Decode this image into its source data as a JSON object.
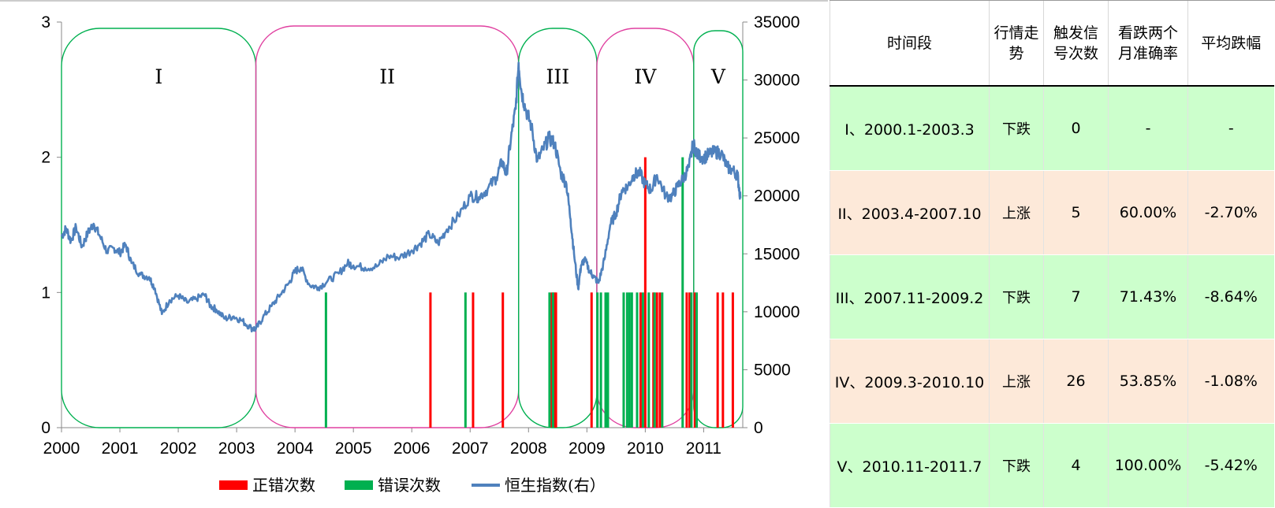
{
  "chart_data": {
    "type": "line+bar",
    "x_ticks": [
      "2000",
      "2001",
      "2002",
      "2003",
      "2004",
      "2005",
      "2006",
      "2007",
      "2008",
      "2009",
      "2010",
      "2011"
    ],
    "x_range": [
      2000,
      2011.67
    ],
    "y_left": {
      "ticks": [
        "0",
        "1",
        "2",
        "3"
      ],
      "range": [
        0,
        3
      ]
    },
    "y_right": {
      "ticks": [
        "0",
        "5000",
        "10000",
        "15000",
        "20000",
        "25000",
        "30000",
        "35000"
      ],
      "range": [
        0,
        35000
      ]
    },
    "series": [
      {
        "name": "正错次数",
        "type": "bar",
        "axis": "left",
        "color": "#ff0000",
        "points": [
          [
            2006.32,
            1
          ],
          [
            2007.05,
            1
          ],
          [
            2007.56,
            1
          ],
          [
            2008.4,
            1
          ],
          [
            2008.44,
            1
          ],
          [
            2008.47,
            1
          ],
          [
            2009.08,
            1
          ],
          [
            2009.92,
            1
          ],
          [
            2010.0,
            2
          ],
          [
            2010.14,
            1
          ],
          [
            2010.2,
            1
          ],
          [
            2010.25,
            1
          ],
          [
            2010.71,
            1
          ],
          [
            2010.76,
            1
          ],
          [
            2010.85,
            1
          ],
          [
            2011.24,
            1
          ],
          [
            2011.33,
            1
          ],
          [
            2011.5,
            1
          ]
        ]
      },
      {
        "name": "错误次数",
        "type": "bar",
        "axis": "left",
        "color": "#00b050",
        "points": [
          [
            2004.53,
            1
          ],
          [
            2006.92,
            1
          ],
          [
            2008.36,
            1
          ],
          [
            2008.42,
            1
          ],
          [
            2009.18,
            1
          ],
          [
            2009.24,
            1
          ],
          [
            2009.32,
            1
          ],
          [
            2009.36,
            1
          ],
          [
            2009.63,
            1
          ],
          [
            2009.69,
            1
          ],
          [
            2009.73,
            1
          ],
          [
            2009.77,
            1
          ],
          [
            2009.86,
            1
          ],
          [
            2009.96,
            1
          ],
          [
            2010.06,
            1
          ],
          [
            2010.16,
            1
          ],
          [
            2010.29,
            1
          ],
          [
            2010.64,
            2
          ],
          [
            2010.79,
            1
          ],
          [
            2010.88,
            1
          ]
        ]
      },
      {
        "name": "恒生指数(右)",
        "type": "line",
        "axis": "right",
        "color": "#4f81bd",
        "points": [
          [
            2000.0,
            16500
          ],
          [
            2000.08,
            17200
          ],
          [
            2000.16,
            16100
          ],
          [
            2000.25,
            17300
          ],
          [
            2000.35,
            15600
          ],
          [
            2000.45,
            16800
          ],
          [
            2000.55,
            17600
          ],
          [
            2000.65,
            16600
          ],
          [
            2000.78,
            15200
          ],
          [
            2000.9,
            15500
          ],
          [
            2001.0,
            15100
          ],
          [
            2001.1,
            15800
          ],
          [
            2001.2,
            14200
          ],
          [
            2001.35,
            13200
          ],
          [
            2001.5,
            13000
          ],
          [
            2001.6,
            12000
          ],
          [
            2001.72,
            9800
          ],
          [
            2001.85,
            11000
          ],
          [
            2002.0,
            11400
          ],
          [
            2002.15,
            10800
          ],
          [
            2002.3,
            11100
          ],
          [
            2002.45,
            11500
          ],
          [
            2002.55,
            10500
          ],
          [
            2002.65,
            10200
          ],
          [
            2002.8,
            9400
          ],
          [
            2002.95,
            9600
          ],
          [
            2003.1,
            9200
          ],
          [
            2003.25,
            8600
          ],
          [
            2003.33,
            8500
          ],
          [
            2003.45,
            9500
          ],
          [
            2003.6,
            10500
          ],
          [
            2003.75,
            11500
          ],
          [
            2003.9,
            12500
          ],
          [
            2004.0,
            13500
          ],
          [
            2004.1,
            13800
          ],
          [
            2004.25,
            12300
          ],
          [
            2004.4,
            12100
          ],
          [
            2004.55,
            12600
          ],
          [
            2004.75,
            13300
          ],
          [
            2004.9,
            14200
          ],
          [
            2005.0,
            14000
          ],
          [
            2005.2,
            13800
          ],
          [
            2005.4,
            13900
          ],
          [
            2005.6,
            14800
          ],
          [
            2005.8,
            14700
          ],
          [
            2006.0,
            15300
          ],
          [
            2006.15,
            15900
          ],
          [
            2006.3,
            16700
          ],
          [
            2006.45,
            15900
          ],
          [
            2006.6,
            17100
          ],
          [
            2006.8,
            18300
          ],
          [
            2007.0,
            20000
          ],
          [
            2007.15,
            19900
          ],
          [
            2007.3,
            20600
          ],
          [
            2007.45,
            21600
          ],
          [
            2007.55,
            23000
          ],
          [
            2007.62,
            21800
          ],
          [
            2007.7,
            25000
          ],
          [
            2007.78,
            27500
          ],
          [
            2007.83,
            31500
          ],
          [
            2007.88,
            29000
          ],
          [
            2007.95,
            27500
          ],
          [
            2008.05,
            26000
          ],
          [
            2008.15,
            23000
          ],
          [
            2008.25,
            24000
          ],
          [
            2008.35,
            25000
          ],
          [
            2008.45,
            24500
          ],
          [
            2008.55,
            22000
          ],
          [
            2008.65,
            21000
          ],
          [
            2008.72,
            18000
          ],
          [
            2008.78,
            15000
          ],
          [
            2008.85,
            12000
          ],
          [
            2008.9,
            14000
          ],
          [
            2008.96,
            14500
          ],
          [
            2009.05,
            13500
          ],
          [
            2009.12,
            13000
          ],
          [
            2009.2,
            12500
          ],
          [
            2009.3,
            14500
          ],
          [
            2009.4,
            17500
          ],
          [
            2009.5,
            18500
          ],
          [
            2009.6,
            20500
          ],
          [
            2009.7,
            20800
          ],
          [
            2009.8,
            21800
          ],
          [
            2009.9,
            22000
          ],
          [
            2010.0,
            21000
          ],
          [
            2010.1,
            20500
          ],
          [
            2010.2,
            21800
          ],
          [
            2010.35,
            20000
          ],
          [
            2010.45,
            19900
          ],
          [
            2010.55,
            20800
          ],
          [
            2010.65,
            21500
          ],
          [
            2010.75,
            22500
          ],
          [
            2010.82,
            24500
          ],
          [
            2010.9,
            23500
          ],
          [
            2011.0,
            23300
          ],
          [
            2011.1,
            23600
          ],
          [
            2011.2,
            23800
          ],
          [
            2011.3,
            23700
          ],
          [
            2011.4,
            22500
          ],
          [
            2011.5,
            22200
          ],
          [
            2011.58,
            21800
          ],
          [
            2011.63,
            19800
          ]
        ]
      }
    ],
    "periods": [
      {
        "label": "I",
        "start": 2000.0,
        "end": 2003.33,
        "color": "#00b050"
      },
      {
        "label": "II",
        "start": 2003.33,
        "end": 2007.83,
        "color": "#e040a0"
      },
      {
        "label": "III",
        "start": 2007.83,
        "end": 2009.17,
        "color": "#00b050"
      },
      {
        "label": "IV",
        "start": 2009.17,
        "end": 2010.83,
        "color": "#e040a0"
      },
      {
        "label": "V",
        "start": 2010.83,
        "end": 2011.67,
        "color": "#00b050"
      }
    ],
    "legend": [
      {
        "label": "正错次数",
        "color": "#ff0000",
        "kind": "bar"
      },
      {
        "label": "错误次数",
        "color": "#00b050",
        "kind": "bar"
      },
      {
        "label": "恒生指数(右）",
        "color": "#4f81bd",
        "kind": "line"
      }
    ],
    "legend_position": "bottom"
  },
  "table": {
    "headers": [
      "时间段",
      "行情走势",
      "触发信号次数",
      "看跌两个月准确率",
      "平均跌幅"
    ],
    "rows": [
      {
        "period": "I、2000.1-2003.3",
        "trend": "下跌",
        "signals": "0",
        "accuracy": "-",
        "avg_drop": "-"
      },
      {
        "period": "II、2003.4-2007.10",
        "trend": "上涨",
        "signals": "5",
        "accuracy": "60.00%",
        "avg_drop": "-2.70%"
      },
      {
        "period": "III、2007.11-2009.2",
        "trend": "下跌",
        "signals": "7",
        "accuracy": "71.43%",
        "avg_drop": "-8.64%"
      },
      {
        "period": "IV、2009.3-2010.10",
        "trend": "上涨",
        "signals": "26",
        "accuracy": "53.85%",
        "avg_drop": "-1.08%"
      },
      {
        "period": "V、2010.11-2011.7",
        "trend": "下跌",
        "signals": "4",
        "accuracy": "100.00%",
        "avg_drop": "-5.42%"
      }
    ],
    "row_colors": [
      "#ccffcc",
      "#fde9d9",
      "#ccffcc",
      "#fde9d9",
      "#ccffcc"
    ]
  }
}
